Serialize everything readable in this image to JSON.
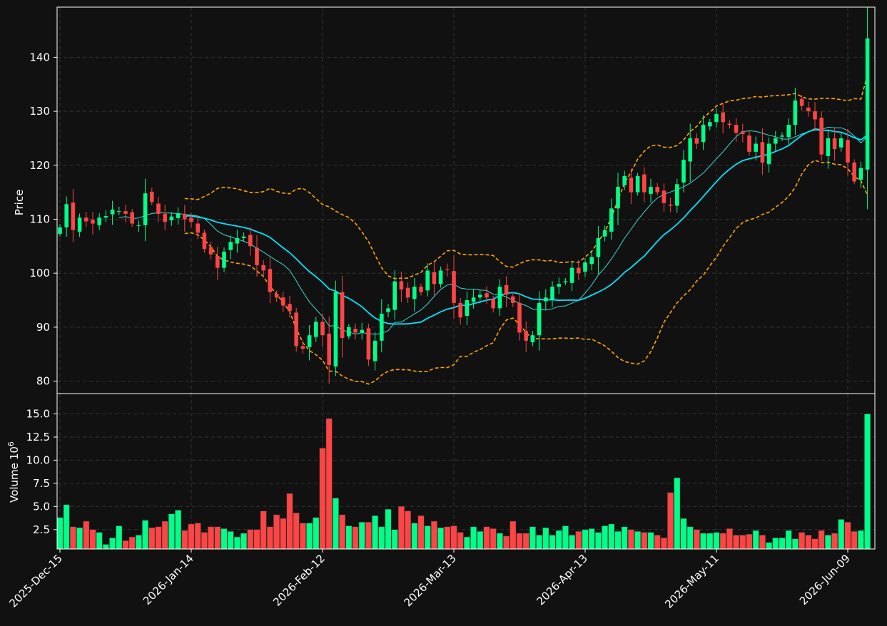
{
  "chart_data": {
    "type": "candlestick",
    "title": "",
    "colors": {
      "background": "#111111",
      "up": "#00ff88",
      "down": "#ff4444",
      "grid": "#333333",
      "spine": "#ffffff",
      "ma_fast": "#3ddad7",
      "ma_slow": "#00e5ff",
      "bands": "#ffa500"
    },
    "grid": true,
    "price_panel": {
      "ylabel": "Price",
      "ylim": [
        77.7,
        149.3
      ],
      "yticks": [
        80,
        90,
        100,
        110,
        120,
        130,
        140
      ]
    },
    "volume_panel": {
      "ylabel": "Volume",
      "ylabel_exponent": "6",
      "ylim": [
        0.4,
        17.2
      ],
      "yticks": [
        2.5,
        5.0,
        7.5,
        10.0,
        12.5,
        15.0
      ],
      "ytick_labels": [
        "2.5",
        "5.0",
        "7.5",
        "10.0",
        "12.5",
        "15.0"
      ]
    },
    "x_tick_labels": [
      {
        "index": 0,
        "label": "2025-Dec-15"
      },
      {
        "index": 20,
        "label": "2026-Jan-14"
      },
      {
        "index": 40,
        "label": "2026-Feb-12"
      },
      {
        "index": 60,
        "label": "2026-Mar-13"
      },
      {
        "index": 80,
        "label": "2026-Apr-13"
      },
      {
        "index": 100,
        "label": "2026-May-11"
      },
      {
        "index": 120,
        "label": "2026-Jun-09"
      }
    ],
    "close": [
      108.5,
      112.8,
      108.0,
      110.3,
      109.6,
      109.2,
      110.3,
      110.6,
      111.8,
      111.5,
      111.0,
      109.2,
      108.9,
      114.8,
      113.2,
      111.0,
      109.5,
      110.5,
      111.0,
      110.0,
      109.5,
      107.5,
      104.5,
      103.5,
      101.0,
      104.0,
      105.8,
      106.5,
      106.8,
      105.0,
      101.5,
      100.5,
      96.5,
      95.5,
      94.0,
      93.0,
      86.5,
      86.0,
      88.5,
      91.0,
      88.5,
      83.0,
      96.5,
      88.0,
      90.0,
      89.0,
      89.5,
      84.0,
      87.5,
      92.5,
      93.5,
      98.5,
      97.0,
      95.5,
      97.5,
      96.5,
      100.5,
      98.0,
      100.5,
      100.7,
      94.5,
      91.8,
      95.0,
      95.5,
      96.0,
      95.5,
      93.5,
      97.5,
      96.0,
      94.5,
      89.0,
      87.5,
      88.5,
      94.5,
      95.5,
      97.5,
      98.0,
      98.5,
      101.0,
      100.0,
      102.0,
      103.0,
      106.5,
      108.0,
      112.0,
      116.0,
      118.0,
      115.0,
      118.0,
      115.0,
      116.0,
      115.0,
      113.0,
      112.5,
      116.5,
      121.0,
      125.0,
      124.0,
      127.5,
      128.0,
      129.5,
      128.0,
      127.5,
      126.0,
      125.8,
      122.5,
      124.0,
      120.5,
      124.0,
      125.0,
      125.5,
      127.5,
      132.0,
      131.0,
      130.0,
      128.5,
      122.0,
      125.0,
      123.0,
      125.0,
      120.5,
      117.0,
      119.5,
      143.5
    ],
    "volume": [
      3.8,
      5.2,
      2.8,
      2.7,
      3.4,
      2.5,
      2.2,
      0.9,
      1.6,
      2.9,
      1.3,
      1.7,
      1.9,
      3.5,
      2.7,
      2.8,
      3.4,
      4.2,
      4.6,
      2.4,
      3.1,
      3.2,
      2.2,
      2.8,
      2.8,
      2.6,
      2.3,
      1.7,
      2.1,
      2.5,
      2.5,
      4.5,
      2.8,
      4.1,
      3.7,
      6.4,
      4.3,
      3.2,
      3.2,
      3.8,
      11.3,
      14.5,
      5.9,
      4.1,
      2.9,
      2.8,
      3.3,
      3.3,
      4.0,
      2.8,
      4.7,
      2.5,
      5.0,
      4.5,
      3.2,
      4.0,
      2.9,
      3.4,
      2.7,
      2.8,
      2.9,
      2.2,
      1.7,
      2.8,
      2.3,
      2.8,
      2.6,
      2.1,
      1.8,
      3.4,
      2.1,
      2.1,
      2.8,
      1.9,
      2.7,
      1.9,
      2.4,
      2.9,
      1.9,
      2.3,
      2.5,
      2.6,
      2.2,
      2.9,
      3.1,
      2.3,
      2.8,
      2.5,
      2.3,
      2.2,
      2.2,
      1.9,
      1.6,
      6.5,
      8.1,
      3.7,
      2.8,
      2.5,
      2.1,
      2.1,
      2.2,
      2.1,
      2.6,
      1.9,
      1.9,
      2.0,
      2.4,
      1.9,
      1.1,
      1.6,
      1.6,
      2.4,
      1.5,
      2.2,
      1.9,
      1.5,
      2.4,
      1.9,
      2.1,
      3.6,
      3.3,
      2.3,
      2.4,
      15.0
    ]
  }
}
